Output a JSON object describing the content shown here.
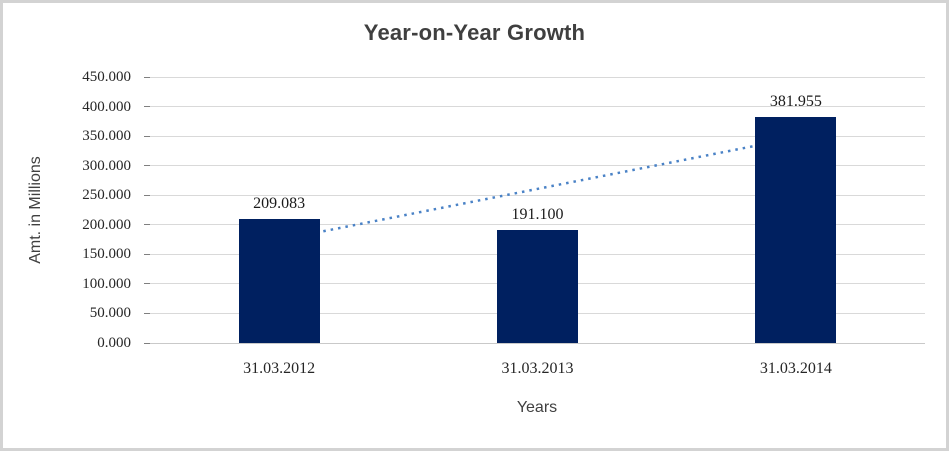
{
  "chart_title": "Year-on-Year Growth",
  "axes": {
    "y_title": "Amt. in Millions",
    "x_title": "Years",
    "y_tick_labels": [
      "450.000",
      "400.000",
      "350.000",
      "300.000",
      "250.000",
      "200.000",
      "150.000",
      "100.000",
      "50.000",
      "0.000"
    ]
  },
  "chart_data": {
    "type": "bar",
    "title": "Year-on-Year Growth",
    "xlabel": "Years",
    "ylabel": "Amt. in Millions",
    "categories": [
      "31.03.2012",
      "31.03.2013",
      "31.03.2014"
    ],
    "values": [
      209.083,
      191.1,
      381.955
    ],
    "data_labels": [
      "209.083",
      "191.100",
      "381.955"
    ],
    "ylim": [
      0,
      450
    ],
    "ytick_step": 50,
    "grid": true,
    "legend_position": "none",
    "bar_color": "#002060",
    "trendline": {
      "type": "linear",
      "style": "dotted",
      "color": "#4a82c6"
    }
  },
  "colors": {
    "bar": "#002060",
    "trendline": "#4a82c6",
    "gridline": "#d9d9d9",
    "border": "#d3d3d3",
    "title_text": "#3f3f3f",
    "number_text": "#262626"
  }
}
